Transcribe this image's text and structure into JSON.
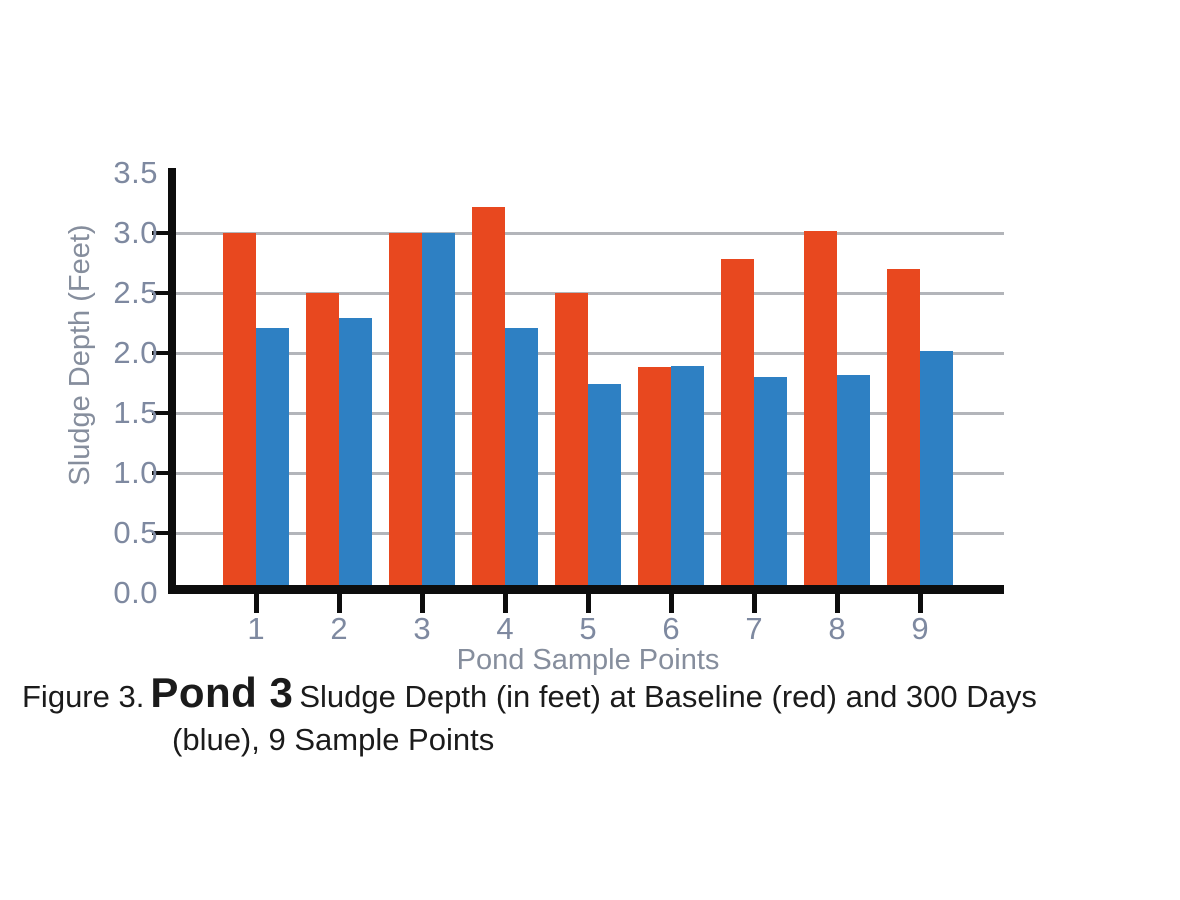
{
  "page": {
    "background": "#ffffff"
  },
  "caption": {
    "prefix": "Figure 3.",
    "highlight": "Pond 3",
    "line1_rest": "Sludge Depth (in feet) at Baseline (red) and 300 Days",
    "line2": "(blue), 9 Sample Points"
  },
  "chart_data": {
    "type": "bar",
    "title": "",
    "xlabel": "Pond Sample Points",
    "ylabel": "Sludge Depth (Feet)",
    "categories": [
      "1",
      "2",
      "3",
      "4",
      "5",
      "6",
      "7",
      "8",
      "9"
    ],
    "series": [
      {
        "name": "Baseline",
        "color": "#e8481f",
        "values": [
          3.0,
          2.5,
          3.0,
          3.22,
          2.5,
          1.88,
          2.78,
          3.02,
          2.7
        ]
      },
      {
        "name": "300 Days",
        "color": "#2e80c3",
        "values": [
          2.21,
          2.29,
          3.0,
          2.21,
          1.74,
          1.89,
          1.8,
          1.82,
          2.02
        ]
      }
    ],
    "ylim": [
      0,
      3.5
    ],
    "ytick_step": 0.5,
    "ytick_labels": [
      "0.0",
      "0.5",
      "1.0",
      "1.5",
      "2.0",
      "2.5",
      "3.0",
      "3.5"
    ],
    "gridline_values": [
      0.5,
      1.0,
      1.5,
      2.0,
      2.5,
      3.0
    ],
    "grid": true,
    "legend_position": "none",
    "colors": {
      "axis": "#0d0d0d",
      "gridline": "#b3b5ba",
      "tick_label": "#7e89a0",
      "axis_title": "#868e9d"
    }
  }
}
